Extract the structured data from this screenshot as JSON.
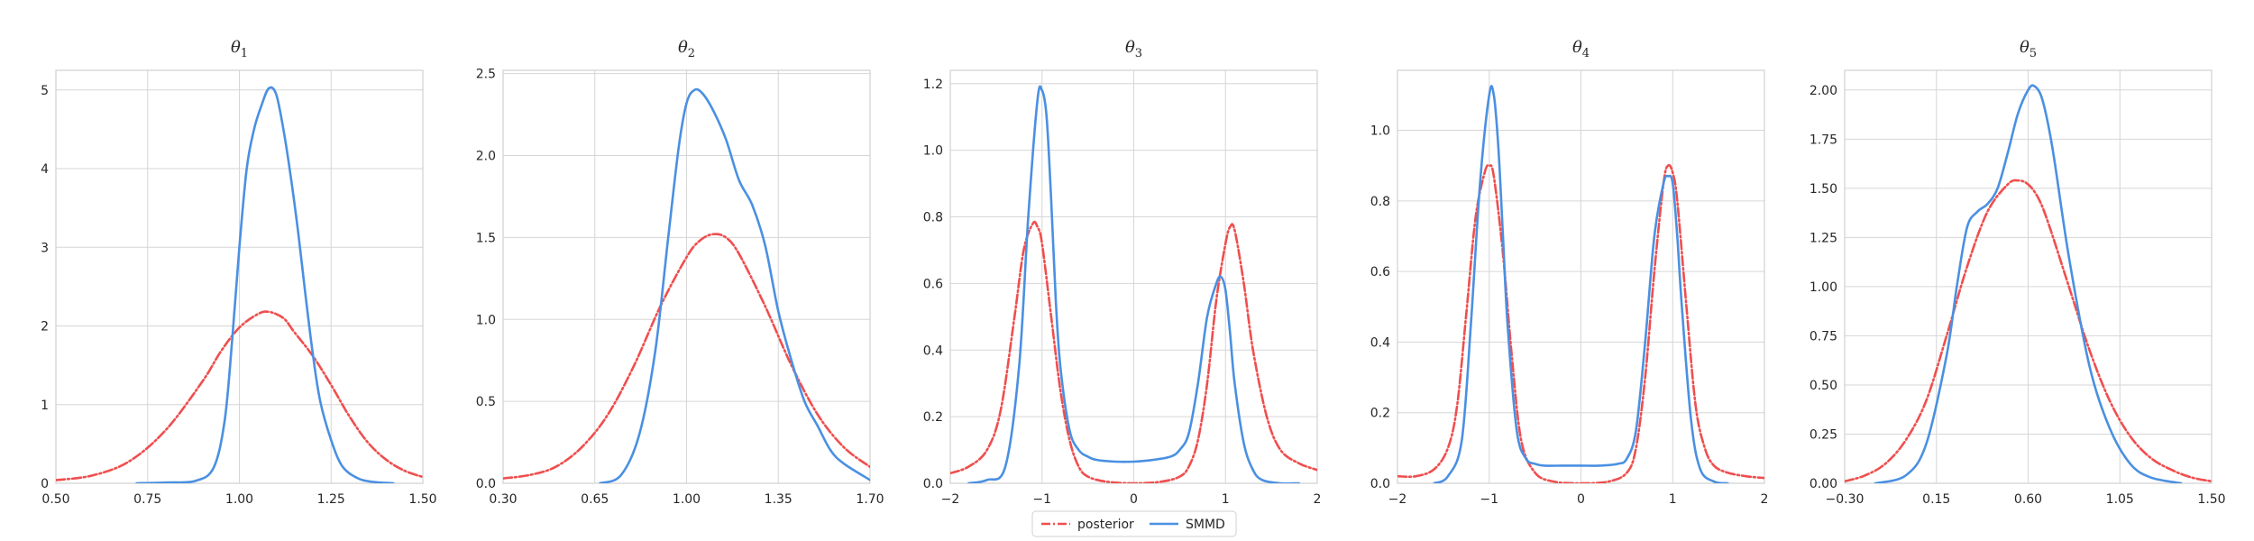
{
  "legend": {
    "entries": [
      "posterior",
      "SMMD"
    ],
    "placement": "bottom-center"
  },
  "colors": {
    "posterior": "#f04e4e",
    "SMMD": "#4a90e2"
  },
  "chart_data": [
    {
      "type": "line",
      "title": "θ",
      "subscript": "1",
      "xlim": [
        0.5,
        1.5
      ],
      "ylim": [
        0,
        5.25
      ],
      "xticks": [
        0.5,
        0.75,
        1.0,
        1.25,
        1.5
      ],
      "xtick_labels": [
        "0.50",
        "0.75",
        "1.00",
        "1.25",
        "1.50"
      ],
      "yticks": [
        0,
        1,
        2,
        3,
        4,
        5
      ],
      "ytick_labels": [
        "0",
        "1",
        "2",
        "3",
        "4",
        "5"
      ],
      "series": [
        {
          "name": "posterior",
          "style": "dashdot",
          "x": [
            0.5,
            0.6,
            0.7,
            0.8,
            0.9,
            0.95,
            1.0,
            1.05,
            1.08,
            1.12,
            1.15,
            1.2,
            1.25,
            1.3,
            1.35,
            1.4,
            1.45,
            1.5
          ],
          "y": [
            0.04,
            0.1,
            0.28,
            0.68,
            1.3,
            1.68,
            1.98,
            2.15,
            2.18,
            2.1,
            1.92,
            1.62,
            1.25,
            0.85,
            0.52,
            0.3,
            0.16,
            0.08
          ]
        },
        {
          "name": "SMMD",
          "style": "solid",
          "x": [
            0.72,
            0.8,
            0.88,
            0.93,
            0.96,
            0.98,
            1.0,
            1.02,
            1.04,
            1.06,
            1.08,
            1.1,
            1.12,
            1.14,
            1.16,
            1.18,
            1.2,
            1.22,
            1.25,
            1.28,
            1.32,
            1.36,
            1.42
          ],
          "y": [
            0.0,
            0.01,
            0.03,
            0.2,
            0.8,
            1.8,
            3.0,
            4.0,
            4.5,
            4.8,
            5.02,
            4.95,
            4.5,
            3.9,
            3.2,
            2.4,
            1.65,
            1.05,
            0.55,
            0.22,
            0.07,
            0.02,
            0.0
          ]
        }
      ]
    },
    {
      "type": "line",
      "title": "θ",
      "subscript": "2",
      "xlim": [
        0.3,
        1.7
      ],
      "ylim": [
        0,
        2.52
      ],
      "xticks": [
        0.3,
        0.65,
        1.0,
        1.35,
        1.7
      ],
      "xtick_labels": [
        "0.30",
        "0.65",
        "1.00",
        "1.35",
        "1.70"
      ],
      "yticks": [
        0,
        0.5,
        1.0,
        1.5,
        2.0,
        2.5
      ],
      "ytick_labels": [
        "0.0",
        "0.5",
        "1.0",
        "1.5",
        "2.0",
        "2.5"
      ],
      "series": [
        {
          "name": "posterior",
          "style": "dashdot",
          "x": [
            0.3,
            0.4,
            0.5,
            0.6,
            0.7,
            0.8,
            0.9,
            1.0,
            1.05,
            1.1,
            1.15,
            1.2,
            1.3,
            1.4,
            1.5,
            1.6,
            1.7
          ],
          "y": [
            0.03,
            0.05,
            0.1,
            0.22,
            0.42,
            0.72,
            1.08,
            1.38,
            1.48,
            1.52,
            1.5,
            1.4,
            1.08,
            0.72,
            0.42,
            0.22,
            0.1
          ]
        },
        {
          "name": "SMMD",
          "style": "solid",
          "x": [
            0.67,
            0.75,
            0.82,
            0.88,
            0.93,
            0.97,
            1.0,
            1.03,
            1.06,
            1.1,
            1.15,
            1.2,
            1.25,
            1.3,
            1.35,
            1.4,
            1.45,
            1.5,
            1.55,
            1.6,
            1.7
          ],
          "y": [
            0.0,
            0.05,
            0.3,
            0.8,
            1.5,
            2.05,
            2.32,
            2.4,
            2.38,
            2.28,
            2.1,
            1.85,
            1.7,
            1.45,
            1.05,
            0.75,
            0.5,
            0.35,
            0.2,
            0.12,
            0.02
          ]
        }
      ]
    },
    {
      "type": "line",
      "title": "θ",
      "subscript": "3",
      "xlim": [
        -2,
        2
      ],
      "ylim": [
        0,
        1.24
      ],
      "xticks": [
        -2,
        -1,
        0,
        1,
        2
      ],
      "xtick_labels": [
        "−2",
        "−1",
        "0",
        "1",
        "2"
      ],
      "yticks": [
        0,
        0.2,
        0.4,
        0.6,
        0.8,
        1.0,
        1.2
      ],
      "ytick_labels": [
        "0.0",
        "0.2",
        "0.4",
        "0.6",
        "0.8",
        "1.0",
        "1.2"
      ],
      "series": [
        {
          "name": "posterior",
          "style": "dashdot",
          "x": [
            -2.0,
            -1.8,
            -1.6,
            -1.45,
            -1.3,
            -1.2,
            -1.1,
            -1.05,
            -1.0,
            -0.9,
            -0.8,
            -0.7,
            -0.6,
            -0.5,
            -0.3,
            0.0,
            0.3,
            0.5,
            0.6,
            0.7,
            0.8,
            0.9,
            1.0,
            1.05,
            1.1,
            1.2,
            1.3,
            1.45,
            1.6,
            1.8,
            2.0
          ],
          "y": [
            0.03,
            0.05,
            0.1,
            0.22,
            0.5,
            0.7,
            0.78,
            0.77,
            0.72,
            0.5,
            0.28,
            0.13,
            0.05,
            0.02,
            0.005,
            0.0,
            0.005,
            0.02,
            0.05,
            0.13,
            0.3,
            0.55,
            0.72,
            0.77,
            0.76,
            0.6,
            0.4,
            0.2,
            0.1,
            0.06,
            0.04
          ]
        },
        {
          "name": "SMMD",
          "style": "solid",
          "x": [
            -1.8,
            -1.6,
            -1.4,
            -1.25,
            -1.15,
            -1.05,
            -1.0,
            -0.95,
            -0.9,
            -0.85,
            -0.8,
            -0.7,
            -0.6,
            -0.5,
            -0.4,
            -0.2,
            0.0,
            0.2,
            0.4,
            0.5,
            0.6,
            0.7,
            0.8,
            0.9,
            0.95,
            1.0,
            1.05,
            1.1,
            1.2,
            1.3,
            1.4,
            1.6,
            1.8
          ],
          "y": [
            0.0,
            0.01,
            0.05,
            0.35,
            0.8,
            1.15,
            1.18,
            1.1,
            0.85,
            0.55,
            0.35,
            0.16,
            0.1,
            0.08,
            0.07,
            0.065,
            0.065,
            0.07,
            0.08,
            0.1,
            0.15,
            0.3,
            0.5,
            0.6,
            0.62,
            0.58,
            0.45,
            0.3,
            0.12,
            0.04,
            0.01,
            0.0,
            0.0
          ]
        }
      ]
    },
    {
      "type": "line",
      "title": "θ",
      "subscript": "4",
      "xlim": [
        -2,
        2
      ],
      "ylim": [
        0,
        1.17
      ],
      "xticks": [
        -2,
        -1,
        0,
        1,
        2
      ],
      "xtick_labels": [
        "−2",
        "−1",
        "0",
        "1",
        "2"
      ],
      "yticks": [
        0,
        0.2,
        0.4,
        0.6,
        0.8,
        1.0
      ],
      "ytick_labels": [
        "0.0",
        "0.2",
        "0.4",
        "0.6",
        "0.8",
        "1.0"
      ],
      "series": [
        {
          "name": "posterior",
          "style": "dashdot",
          "x": [
            -2.0,
            -1.8,
            -1.6,
            -1.45,
            -1.35,
            -1.25,
            -1.15,
            -1.05,
            -1.0,
            -0.95,
            -0.85,
            -0.75,
            -0.65,
            -0.5,
            -0.3,
            0.0,
            0.3,
            0.5,
            0.6,
            0.7,
            0.8,
            0.9,
            0.95,
            1.0,
            1.05,
            1.15,
            1.25,
            1.35,
            1.45,
            1.6,
            1.8,
            2.0
          ],
          "y": [
            0.02,
            0.02,
            0.04,
            0.1,
            0.22,
            0.48,
            0.75,
            0.88,
            0.9,
            0.87,
            0.65,
            0.35,
            0.12,
            0.03,
            0.005,
            0.0,
            0.005,
            0.03,
            0.1,
            0.3,
            0.6,
            0.85,
            0.9,
            0.88,
            0.8,
            0.5,
            0.22,
            0.1,
            0.05,
            0.03,
            0.02,
            0.015
          ]
        },
        {
          "name": "SMMD",
          "style": "solid",
          "x": [
            -1.6,
            -1.45,
            -1.3,
            -1.2,
            -1.1,
            -1.0,
            -0.95,
            -0.9,
            -0.85,
            -0.8,
            -0.7,
            -0.6,
            -0.5,
            -0.4,
            -0.2,
            0.0,
            0.2,
            0.4,
            0.5,
            0.6,
            0.7,
            0.8,
            0.9,
            0.95,
            1.0,
            1.05,
            1.1,
            1.2,
            1.3,
            1.45,
            1.6
          ],
          "y": [
            0.0,
            0.02,
            0.12,
            0.45,
            0.85,
            1.1,
            1.1,
            0.95,
            0.7,
            0.45,
            0.15,
            0.07,
            0.055,
            0.05,
            0.05,
            0.05,
            0.05,
            0.055,
            0.07,
            0.15,
            0.4,
            0.7,
            0.85,
            0.87,
            0.85,
            0.7,
            0.5,
            0.18,
            0.04,
            0.005,
            0.0
          ]
        }
      ]
    },
    {
      "type": "line",
      "title": "θ",
      "subscript": "5",
      "xlim": [
        -0.3,
        1.5
      ],
      "ylim": [
        0,
        2.1
      ],
      "xticks": [
        -0.3,
        0.15,
        0.6,
        1.05,
        1.5
      ],
      "xtick_labels": [
        "−0.30",
        "0.15",
        "0.60",
        "1.05",
        "1.50"
      ],
      "yticks": [
        0,
        0.25,
        0.5,
        0.75,
        1.0,
        1.25,
        1.5,
        1.75,
        2.0
      ],
      "ytick_labels": [
        "0.00",
        "0.25",
        "0.50",
        "0.75",
        "1.00",
        "1.25",
        "1.50",
        "1.75",
        "2.00"
      ],
      "series": [
        {
          "name": "posterior",
          "style": "dashdot",
          "x": [
            -0.3,
            -0.2,
            -0.1,
            0.0,
            0.1,
            0.2,
            0.3,
            0.4,
            0.5,
            0.55,
            0.6,
            0.65,
            0.7,
            0.8,
            0.9,
            1.0,
            1.1,
            1.2,
            1.3,
            1.4,
            1.5
          ],
          "y": [
            0.01,
            0.04,
            0.1,
            0.22,
            0.42,
            0.75,
            1.1,
            1.38,
            1.52,
            1.54,
            1.52,
            1.45,
            1.32,
            1.0,
            0.68,
            0.42,
            0.24,
            0.13,
            0.07,
            0.03,
            0.01
          ]
        },
        {
          "name": "SMMD",
          "style": "solid",
          "x": [
            -0.15,
            0.0,
            0.1,
            0.2,
            0.25,
            0.3,
            0.35,
            0.4,
            0.45,
            0.5,
            0.55,
            0.6,
            0.63,
            0.67,
            0.72,
            0.8,
            0.9,
            1.0,
            1.1,
            1.2,
            1.35
          ],
          "y": [
            0.0,
            0.04,
            0.2,
            0.65,
            1.0,
            1.3,
            1.38,
            1.42,
            1.5,
            1.68,
            1.88,
            2.0,
            2.02,
            1.95,
            1.7,
            1.15,
            0.6,
            0.28,
            0.1,
            0.03,
            0.0
          ]
        }
      ]
    }
  ]
}
